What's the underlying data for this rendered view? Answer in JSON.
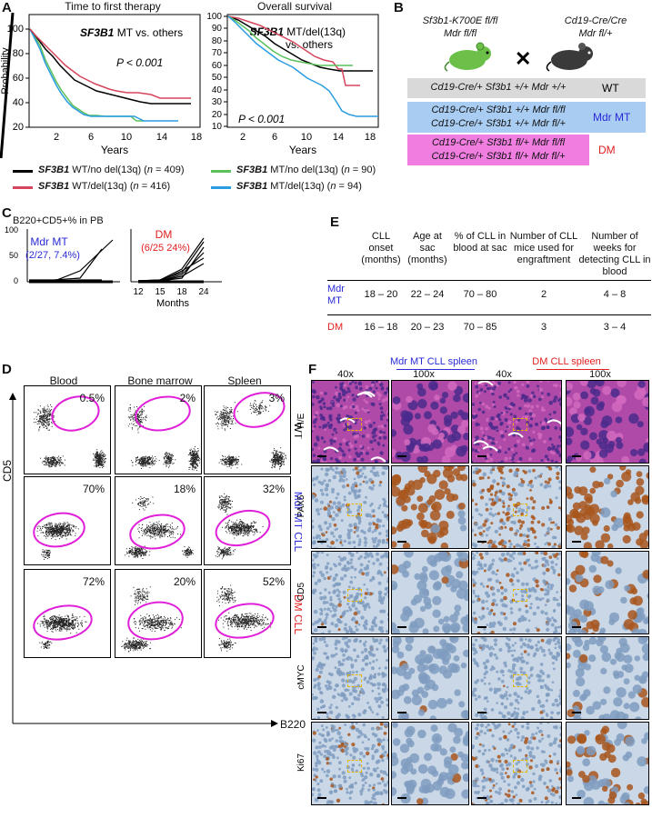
{
  "panel_letters": {
    "A": "A",
    "B": "B",
    "C": "C",
    "D": "D",
    "E": "E",
    "F": "F"
  },
  "panelA": {
    "left": {
      "title": "Time to first therapy",
      "annotation_main": "SF3B1",
      "annotation_rest": " MT vs. others",
      "pvalue": "P < 0.001",
      "ylabel": "Probability",
      "xlabel": "Years",
      "yticks": [
        "100",
        "80",
        "60",
        "40",
        "20"
      ],
      "xticks": [
        "2",
        "6",
        "10",
        "14",
        "18"
      ]
    },
    "right": {
      "title": "Overall survival",
      "annotation_line1_main": "SF3B1",
      "annotation_line1_rest": " MT/del(13q)",
      "annotation_line2": "vs. others",
      "pvalue": "P < 0.001",
      "xlabel": "Years",
      "yticks": [
        "100",
        "90",
        "80",
        "70",
        "60",
        "50",
        "40",
        "30",
        "20",
        "10"
      ],
      "xticks": [
        "2",
        "6",
        "10",
        "14",
        "18"
      ]
    },
    "legend": [
      {
        "gene": "SF3B1",
        "rest": " WT/no del(13q) (",
        "n": "n",
        "count": " = 409)",
        "color": "#000000"
      },
      {
        "gene": "SF3B1",
        "rest": " WT/del(13q) (",
        "n": "n",
        "count": " = 416)",
        "color": "#d6455c"
      },
      {
        "gene": "SF3B1",
        "rest": " MT/no del(13q) (",
        "n": "n",
        "count": " = 90)",
        "color": "#5cc05c"
      },
      {
        "gene": "SF3B1",
        "rest": " MT/del(13q) (",
        "n": "n",
        "count": " = 94)",
        "color": "#2a9ce0"
      }
    ]
  },
  "panelB": {
    "parent_left_line1": "Sf3b1-K700E fl/fl",
    "parent_left_line2": "Mdr fl/fl",
    "parent_right_line1": "Cd19-Cre/Cre",
    "parent_right_line2": "Mdr fl/+",
    "cross": "✕",
    "groups": [
      {
        "lines": [
          "Cd19-Cre/+ Sf3b1 +/+ Mdr +/+"
        ],
        "label": "WT",
        "color": "#d9d9d9",
        "labelcolor": "#000000"
      },
      {
        "lines": [
          "Cd19-Cre/+ Sf3b1 +/+ Mdr fl/fl",
          "Cd19-Cre/+ Sf3b1 +/+ Mdr fl/+"
        ],
        "label": "Mdr MT",
        "color": "#a9cdf2",
        "labelcolor": "#2a2ad6"
      },
      {
        "lines": [
          "Cd19-Cre/+ Sf3b1 fl/+ Mdr fl/fl",
          "Cd19-Cre/+ Sf3b1 fl/+ Mdr fl/+"
        ],
        "label": "DM",
        "color": "#f07de0",
        "labelcolor": "#e02020"
      }
    ]
  },
  "panelC": {
    "title": "B220+CD5+% in PB",
    "mdr_label": "Mdr MT",
    "mdr_stat": "(2/27, 7.4%)",
    "dm_label": "DM",
    "dm_stat": "(6/25 24%)",
    "yticks": [
      "100",
      "50",
      "0"
    ],
    "xticks": [
      "12",
      "15",
      "18",
      "24"
    ],
    "xlabel": "Months"
  },
  "panelD": {
    "columns": [
      "Blood",
      "Bone marrow",
      "Spleen"
    ],
    "rows": [
      {
        "label": "WT",
        "color": "#000000",
        "pcts": [
          "0.5%",
          "2%",
          "3%"
        ]
      },
      {
        "label": "Mdr MT CLL",
        "color": "#2a2ad6",
        "pcts": [
          "70%",
          "18%",
          "32%"
        ]
      },
      {
        "label": "DM CLL",
        "color": "#e02020",
        "pcts": [
          "72%",
          "20%",
          "52%"
        ]
      }
    ],
    "ylabel": "CD5",
    "xlabel": "B220"
  },
  "panelE": {
    "headers": [
      "CLL onset (months)",
      "Age at sac (months)",
      "% of CLL in blood at sac",
      "Number of CLL mice used for engraftment",
      "Number of weeks for detecting CLL in blood"
    ],
    "rows": [
      {
        "label": "Mdr MT",
        "color": "#2a2ad6",
        "cells": [
          "18 – 20",
          "22 – 24",
          "70 – 80",
          "2",
          "4 – 8"
        ]
      },
      {
        "label": "DM",
        "color": "#e02020",
        "cells": [
          "16 – 18",
          "20 – 23",
          "70 – 85",
          "3",
          "3 – 4"
        ]
      }
    ]
  },
  "panelF": {
    "group_mdr": "Mdr MT CLL spleen",
    "group_dm": "DM CLL spleen",
    "mags": [
      "40x",
      "100x",
      "40x",
      "100x"
    ],
    "rows": [
      "H/E",
      "PAX5",
      "CD5",
      "cMYC",
      "Ki67"
    ]
  },
  "colors": {
    "gate": "#e020d8",
    "blue": "#2a2ad6",
    "red": "#e02020",
    "he_bg": "#b04aa8",
    "ihc_bg": "#c9d7e6",
    "brown": "#a8561c"
  }
}
